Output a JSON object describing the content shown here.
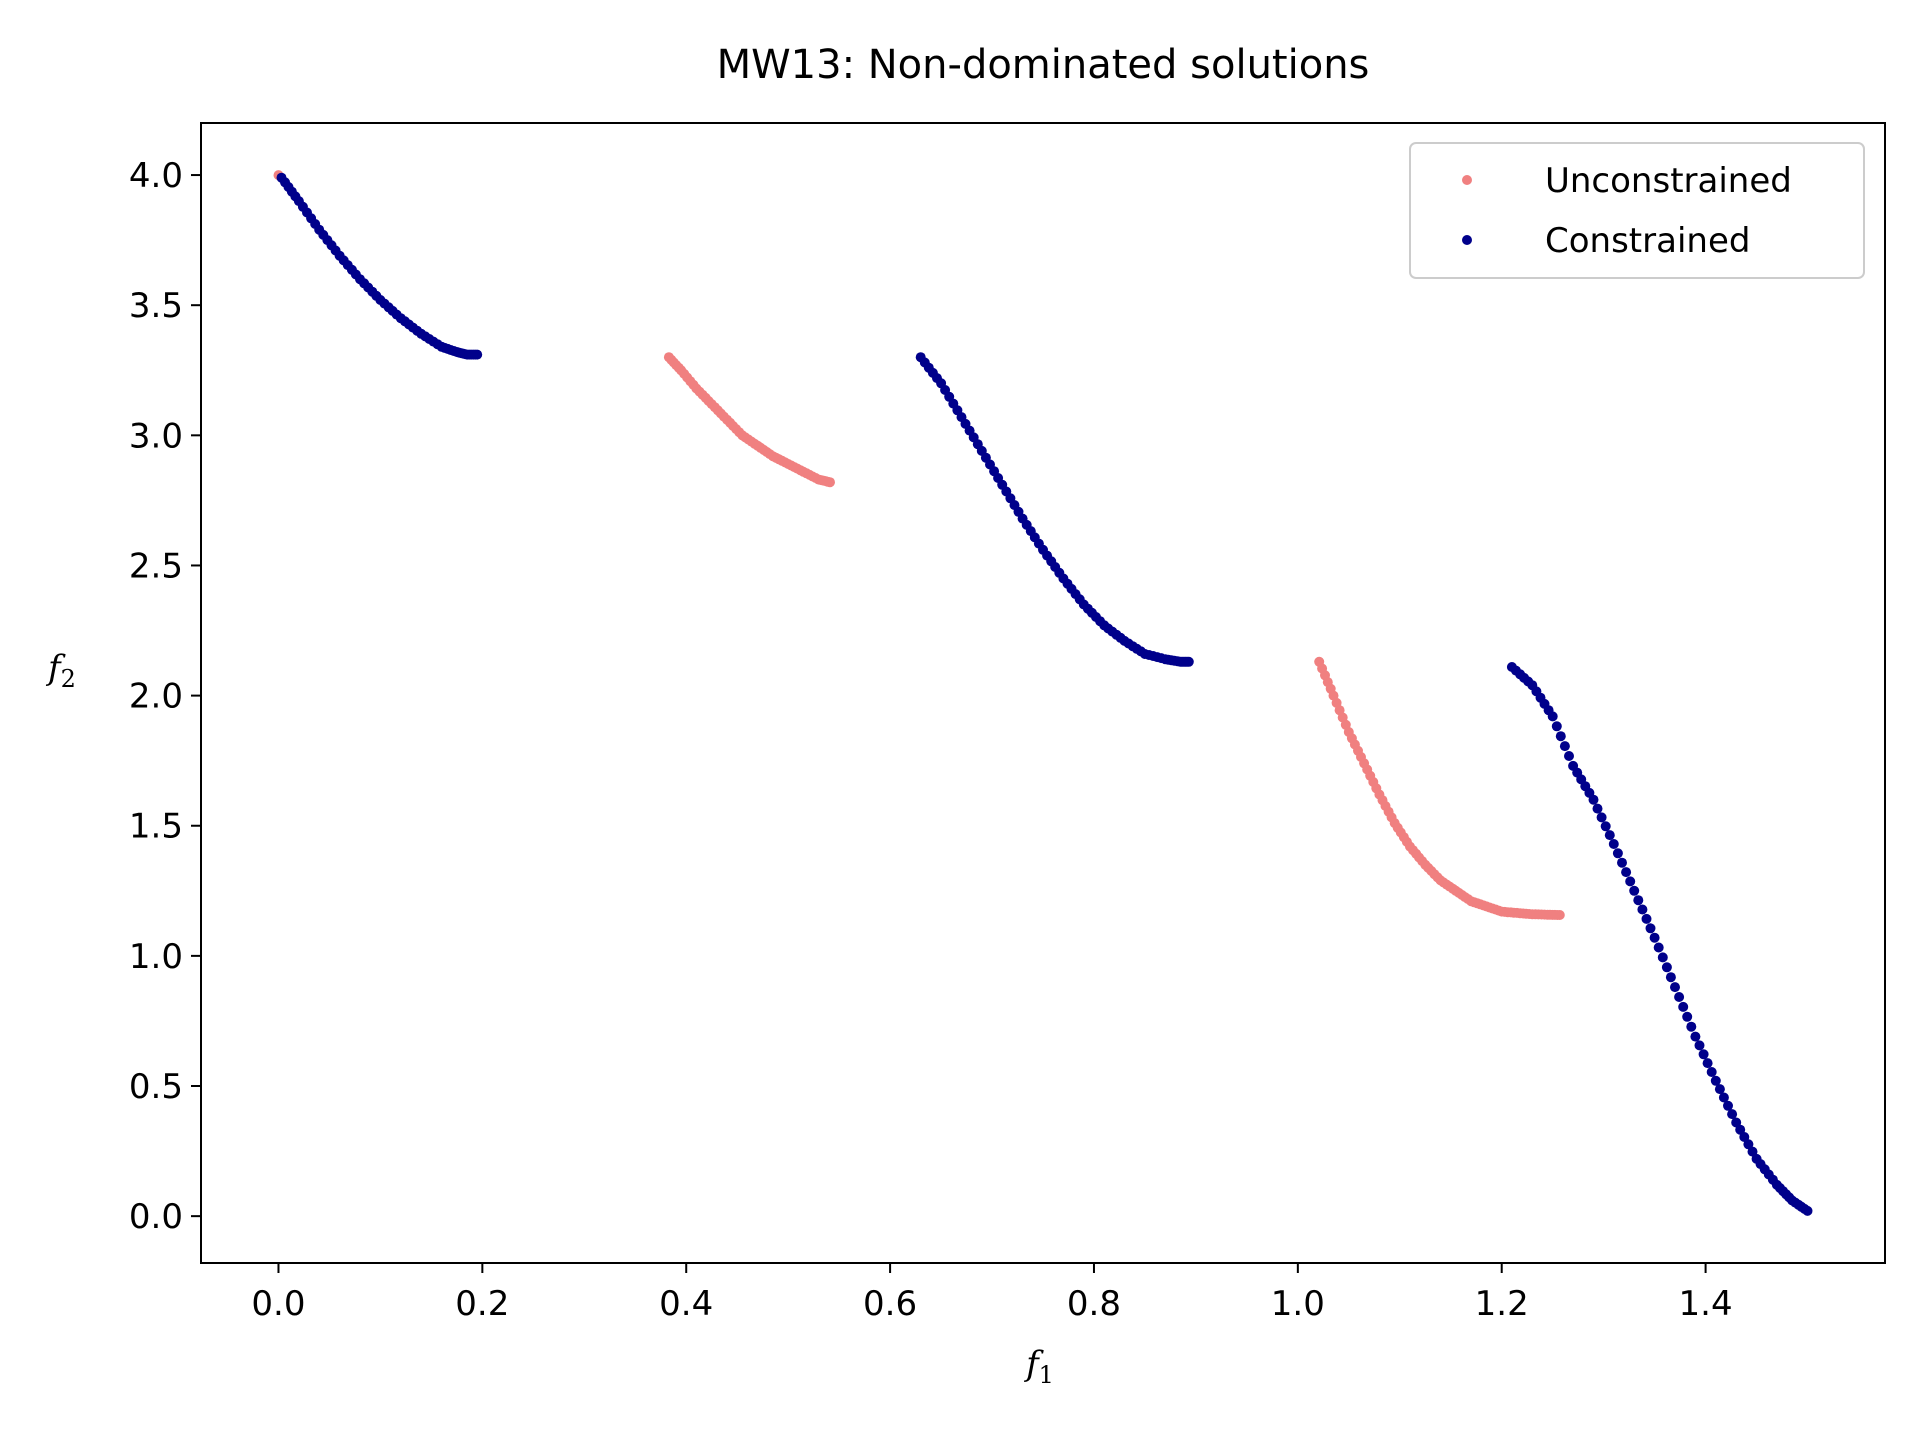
{
  "chart_data": {
    "type": "scatter",
    "title": "MW13: Non-dominated solutions",
    "xlabel": "f",
    "xlabel_subscript": "1",
    "ylabel": "f",
    "ylabel_subscript": "2",
    "xlim": [
      -0.076,
      1.576
    ],
    "ylim": [
      -0.18,
      4.2
    ],
    "xticks": [
      0.0,
      0.2,
      0.4,
      0.6,
      0.8,
      1.0,
      1.2,
      1.4
    ],
    "xtick_labels": [
      "0.0",
      "0.2",
      "0.4",
      "0.6",
      "0.8",
      "1.0",
      "1.2",
      "1.4"
    ],
    "yticks": [
      0.0,
      0.5,
      1.0,
      1.5,
      2.0,
      2.5,
      3.0,
      3.5,
      4.0
    ],
    "ytick_labels": [
      "0.0",
      "0.5",
      "1.0",
      "1.5",
      "2.0",
      "2.5",
      "3.0",
      "3.5",
      "4.0"
    ],
    "grid": false,
    "legend_position": "top-right",
    "series": [
      {
        "name": "Unconstrained",
        "color": "#f08080",
        "points": [
          [
            0.0,
            4.0
          ],
          [
            0.383,
            3.3
          ],
          [
            0.395,
            3.25
          ],
          [
            0.41,
            3.18
          ],
          [
            0.425,
            3.12
          ],
          [
            0.44,
            3.06
          ],
          [
            0.455,
            3.0
          ],
          [
            0.47,
            2.96
          ],
          [
            0.485,
            2.92
          ],
          [
            0.5,
            2.89
          ],
          [
            0.515,
            2.86
          ],
          [
            0.53,
            2.83
          ],
          [
            0.541,
            2.82
          ],
          [
            1.021,
            2.13
          ],
          [
            1.035,
            2.0
          ],
          [
            1.05,
            1.86
          ],
          [
            1.065,
            1.74
          ],
          [
            1.08,
            1.62
          ],
          [
            1.095,
            1.51
          ],
          [
            1.11,
            1.42
          ],
          [
            1.125,
            1.35
          ],
          [
            1.14,
            1.29
          ],
          [
            1.155,
            1.25
          ],
          [
            1.17,
            1.21
          ],
          [
            1.185,
            1.19
          ],
          [
            1.2,
            1.17
          ],
          [
            1.215,
            1.165
          ],
          [
            1.23,
            1.16
          ],
          [
            1.245,
            1.158
          ],
          [
            1.257,
            1.157
          ]
        ]
      },
      {
        "name": "Constrained",
        "color": "#00008b",
        "points": [
          [
            0.003,
            3.99
          ],
          [
            0.02,
            3.9
          ],
          [
            0.04,
            3.79
          ],
          [
            0.06,
            3.69
          ],
          [
            0.08,
            3.6
          ],
          [
            0.1,
            3.52
          ],
          [
            0.12,
            3.45
          ],
          [
            0.14,
            3.39
          ],
          [
            0.16,
            3.34
          ],
          [
            0.175,
            3.32
          ],
          [
            0.185,
            3.31
          ],
          [
            0.195,
            3.31
          ],
          [
            0.63,
            3.3
          ],
          [
            0.65,
            3.2
          ],
          [
            0.67,
            3.07
          ],
          [
            0.69,
            2.94
          ],
          [
            0.71,
            2.81
          ],
          [
            0.73,
            2.68
          ],
          [
            0.75,
            2.56
          ],
          [
            0.77,
            2.45
          ],
          [
            0.79,
            2.35
          ],
          [
            0.81,
            2.27
          ],
          [
            0.83,
            2.21
          ],
          [
            0.85,
            2.16
          ],
          [
            0.87,
            2.14
          ],
          [
            0.885,
            2.13
          ],
          [
            0.893,
            2.13
          ],
          [
            1.21,
            2.11
          ],
          [
            1.23,
            2.04
          ],
          [
            1.25,
            1.92
          ],
          [
            1.27,
            1.73
          ],
          [
            1.29,
            1.6
          ],
          [
            1.31,
            1.43
          ],
          [
            1.33,
            1.25
          ],
          [
            1.35,
            1.07
          ],
          [
            1.37,
            0.88
          ],
          [
            1.39,
            0.69
          ],
          [
            1.41,
            0.52
          ],
          [
            1.43,
            0.36
          ],
          [
            1.45,
            0.22
          ],
          [
            1.47,
            0.12
          ],
          [
            1.485,
            0.06
          ],
          [
            1.5,
            0.02
          ]
        ]
      }
    ]
  }
}
